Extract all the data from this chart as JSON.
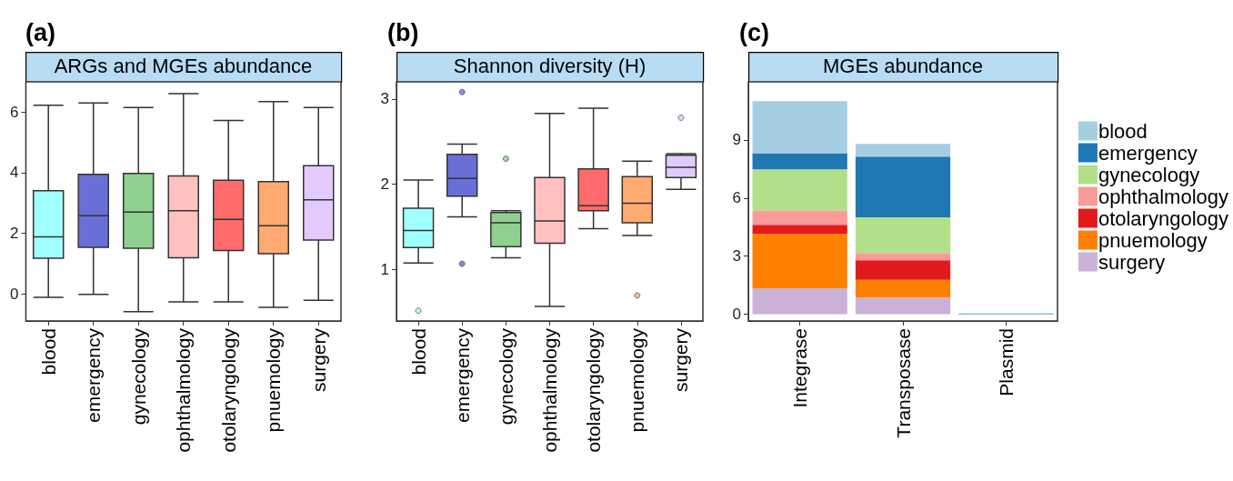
{
  "chart_data": [
    {
      "type": "box",
      "title": "ARGs and MGEs abundance",
      "annotations": [
        "(a)"
      ],
      "categories": [
        "blood",
        "emergency",
        "gynecology",
        "ophthalmology",
        "otolaryngology",
        "pnuemology",
        "surgery"
      ],
      "colors": [
        "#a0ffff",
        "#6a6fd8",
        "#90d08f",
        "#ffc0c0",
        "#ff6b6b",
        "#ffaa70",
        "#e2caff"
      ],
      "boxes": [
        {
          "low": -0.12,
          "q1": 1.17,
          "median": 1.88,
          "q3": 3.4,
          "high": 6.23
        },
        {
          "low": -0.02,
          "q1": 1.53,
          "median": 2.58,
          "q3": 3.94,
          "high": 6.3
        },
        {
          "low": -0.59,
          "q1": 1.5,
          "median": 2.7,
          "q3": 3.97,
          "high": 6.15
        },
        {
          "low": -0.27,
          "q1": 1.19,
          "median": 2.74,
          "q3": 3.89,
          "high": 6.61
        },
        {
          "low": -0.27,
          "q1": 1.43,
          "median": 2.46,
          "q3": 3.75,
          "high": 5.72
        },
        {
          "low": -0.45,
          "q1": 1.32,
          "median": 2.25,
          "q3": 3.7,
          "high": 6.35
        },
        {
          "low": -0.22,
          "q1": 1.77,
          "median": 3.1,
          "q3": 4.23,
          "high": 6.15
        }
      ],
      "ylim": [
        -0.9,
        7
      ],
      "yticks": [
        0,
        2,
        4,
        6
      ],
      "grid": false,
      "legend": false
    },
    {
      "type": "box",
      "title": "Shannon diversity (H)",
      "annotations": [
        "(b)"
      ],
      "categories": [
        "blood",
        "emergency",
        "gynecology",
        "ophthalmology",
        "otolaryngology",
        "pnuemology",
        "surgery"
      ],
      "colors": [
        "#a0ffff",
        "#6a6fd8",
        "#90d08f",
        "#ffc0c0",
        "#ff6b6b",
        "#ffaa70",
        "#e2caff"
      ],
      "boxes": [
        {
          "low": 1.08,
          "q1": 1.26,
          "median": 1.46,
          "q3": 1.72,
          "high": 2.05,
          "outliers": [
            0.52
          ]
        },
        {
          "low": 1.62,
          "q1": 1.86,
          "median": 2.07,
          "q3": 2.35,
          "high": 2.47,
          "outliers": [
            3.08,
            1.07
          ]
        },
        {
          "low": 1.14,
          "q1": 1.27,
          "median": 1.55,
          "q3": 1.67,
          "high": 1.69,
          "outliers": [
            2.3
          ]
        },
        {
          "low": 0.57,
          "q1": 1.31,
          "median": 1.57,
          "q3": 2.08,
          "high": 2.83
        },
        {
          "low": 1.48,
          "q1": 1.69,
          "median": 1.75,
          "q3": 2.18,
          "high": 2.89
        },
        {
          "low": 1.4,
          "q1": 1.55,
          "median": 1.78,
          "q3": 2.09,
          "high": 2.27,
          "outliers": [
            0.7
          ]
        },
        {
          "low": 1.94,
          "q1": 2.08,
          "median": 2.2,
          "q3": 2.34,
          "high": 2.36,
          "outliers": [
            2.78
          ]
        }
      ],
      "ylim": [
        0.4,
        3.2
      ],
      "yticks": [
        1,
        2,
        3
      ],
      "grid": false,
      "legend": false
    },
    {
      "type": "bar",
      "stacked": true,
      "title": "MGEs abundance",
      "annotations": [
        "(c)"
      ],
      "categories": [
        "Integrase",
        "Transposase",
        "Plasmid"
      ],
      "series": [
        {
          "name": "surgery",
          "color": "#cab2d6",
          "values": [
            1.34,
            0.86,
            0
          ]
        },
        {
          "name": "pnuemology",
          "color": "#ff7f00",
          "values": [
            2.82,
            0.92,
            0
          ]
        },
        {
          "name": "otolaryngology",
          "color": "#e31a1c",
          "values": [
            0.46,
            1.01,
            0
          ]
        },
        {
          "name": "ophthalmology",
          "color": "#fb9a99",
          "values": [
            0.74,
            0.37,
            0
          ]
        },
        {
          "name": "gynecology",
          "color": "#b2df8a",
          "values": [
            2.12,
            1.84,
            0
          ]
        },
        {
          "name": "emergency",
          "color": "#1f78b4",
          "values": [
            0.83,
            3.14,
            0.04
          ]
        },
        {
          "name": "blood",
          "color": "#a6cee3",
          "values": [
            2.69,
            0.65,
            0
          ]
        }
      ],
      "ylim": [
        -0.35,
        12
      ],
      "yticks": [
        0,
        3,
        6,
        9
      ],
      "grid": false,
      "legend": "right"
    }
  ]
}
